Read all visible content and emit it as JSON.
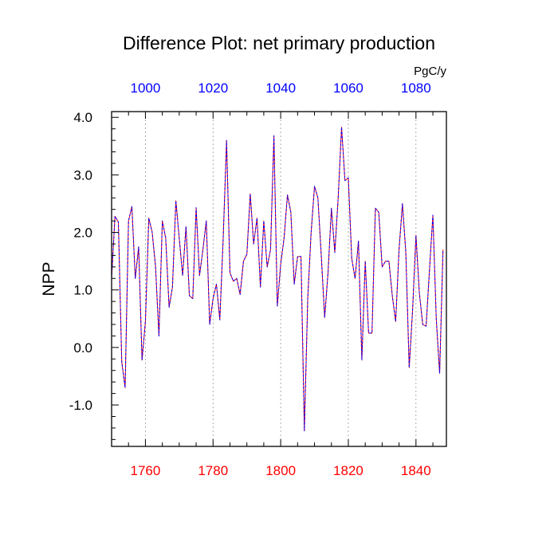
{
  "chart_data": {
    "type": "line",
    "title": "Difference Plot: net primary production",
    "units_label": "PgC/y",
    "ylabel": "NPP",
    "xlim": [
      1750,
      1849
    ],
    "ylim": [
      -1.72,
      4.1
    ],
    "bottom_axis": {
      "label_color": "#ff0000",
      "ticks": [
        1760,
        1780,
        1800,
        1820,
        1840
      ],
      "tick_labels": [
        "1760",
        "1780",
        "1800",
        "1820",
        "1840"
      ]
    },
    "top_axis": {
      "label_color": "#0000ff",
      "ticks": [
        1000,
        1020,
        1040,
        1060,
        1080
      ],
      "tick_labels": [
        "1000",
        "1020",
        "1040",
        "1060",
        "1080"
      ],
      "offset": -760
    },
    "left_axis": {
      "ticks": [
        -1.0,
        0.0,
        1.0,
        2.0,
        3.0,
        4.0
      ],
      "tick_labels": [
        "-1.0",
        "0.0",
        "1.0",
        "2.0",
        "3.0",
        "4.0"
      ],
      "minor_step": 0.2
    },
    "grid": "vertical dashed at major x ticks",
    "series": [
      {
        "name": "series-red",
        "color": "#ff0000",
        "style": "solid",
        "x_start": 1750,
        "values": [
          1.2,
          2.28,
          2.18,
          -0.25,
          -0.7,
          2.2,
          2.45,
          1.2,
          1.75,
          -0.22,
          0.45,
          2.25,
          2.0,
          1.4,
          0.2,
          2.2,
          1.9,
          0.7,
          1.05,
          2.55,
          1.9,
          1.25,
          2.1,
          0.9,
          0.85,
          2.43,
          1.25,
          1.7,
          2.2,
          0.4,
          0.85,
          1.1,
          0.48,
          1.9,
          3.6,
          1.3,
          1.15,
          1.2,
          0.92,
          1.5,
          1.62,
          2.67,
          1.8,
          2.25,
          1.05,
          2.2,
          1.4,
          1.7,
          3.68,
          0.72,
          1.45,
          1.9,
          2.65,
          2.35,
          1.1,
          1.58,
          1.58,
          -1.45,
          0.85,
          2.0,
          2.8,
          2.6,
          1.6,
          0.52,
          1.3,
          2.42,
          1.65,
          2.6,
          3.83,
          2.9,
          2.95,
          1.55,
          1.2,
          1.85,
          -0.22,
          1.5,
          0.25,
          0.25,
          2.42,
          2.35,
          1.4,
          1.5,
          1.5,
          0.9,
          0.45,
          1.7,
          2.5,
          1.65,
          -0.35,
          0.65,
          1.95,
          0.95,
          0.4,
          0.37,
          1.35,
          2.3,
          0.5,
          -0.45,
          1.7
        ]
      },
      {
        "name": "series-blue",
        "color": "#0000ff",
        "style": "dashed",
        "x_start": 1750,
        "values": [
          1.2,
          2.28,
          2.18,
          -0.25,
          -0.7,
          2.2,
          2.45,
          1.2,
          1.75,
          -0.22,
          0.45,
          2.25,
          2.0,
          1.4,
          0.2,
          2.2,
          1.9,
          0.7,
          1.05,
          2.55,
          1.9,
          1.25,
          2.1,
          0.9,
          0.85,
          2.43,
          1.25,
          1.7,
          2.2,
          0.4,
          0.85,
          1.1,
          0.48,
          1.9,
          3.6,
          1.3,
          1.15,
          1.2,
          0.92,
          1.5,
          1.62,
          2.67,
          1.8,
          2.25,
          1.05,
          2.2,
          1.4,
          1.7,
          3.68,
          0.72,
          1.45,
          1.9,
          2.65,
          2.35,
          1.1,
          1.58,
          1.58,
          -1.45,
          0.85,
          2.0,
          2.8,
          2.6,
          1.6,
          0.52,
          1.3,
          2.42,
          1.65,
          2.6,
          3.83,
          2.9,
          2.95,
          1.55,
          1.2,
          1.85,
          -0.22,
          1.5,
          0.25,
          0.25,
          2.42,
          2.35,
          1.4,
          1.5,
          1.5,
          0.9,
          0.45,
          1.7,
          2.5,
          1.65,
          -0.35,
          0.65,
          1.95,
          0.95,
          0.4,
          0.37,
          1.35,
          2.3,
          0.5,
          -0.45,
          1.7
        ]
      }
    ]
  }
}
